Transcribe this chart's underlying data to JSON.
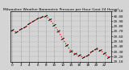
{
  "title": "Milwaukee Weather Barometric Pressure per Hour (Last 24 Hours)",
  "background_color": "#d4d4d4",
  "plot_bg_color": "#d4d4d4",
  "grid_color": "#888888",
  "line_color": "#ff0000",
  "marker_color": "#000000",
  "hours": [
    0,
    1,
    2,
    3,
    4,
    5,
    6,
    7,
    8,
    9,
    10,
    11,
    12,
    13,
    14,
    15,
    16,
    17,
    18,
    19,
    20,
    21,
    22,
    23
  ],
  "pressure": [
    29.72,
    29.68,
    29.74,
    29.78,
    29.85,
    29.9,
    29.95,
    29.98,
    30.0,
    29.93,
    29.82,
    29.7,
    29.55,
    29.42,
    29.3,
    29.25,
    29.22,
    29.18,
    29.22,
    29.3,
    29.35,
    29.32,
    29.26,
    29.18
  ],
  "ylim": [
    29.1,
    30.1
  ],
  "ytick_vals": [
    29.1,
    29.2,
    29.3,
    29.4,
    29.5,
    29.6,
    29.7,
    29.8,
    29.9,
    30.0,
    30.1
  ],
  "ytick_labels": [
    "29.10",
    "29.20",
    "29.30",
    "29.40",
    "29.50",
    "29.60",
    "29.70",
    "29.80",
    "29.90",
    "30.00",
    "30.10"
  ],
  "xtick_positions": [
    0,
    2,
    4,
    6,
    8,
    10,
    12,
    14,
    16,
    18,
    20,
    22
  ],
  "xtick_labels": [
    "0",
    "2",
    "4",
    "6",
    "8",
    "10",
    "12",
    "14",
    "16",
    "18",
    "20",
    "22"
  ]
}
